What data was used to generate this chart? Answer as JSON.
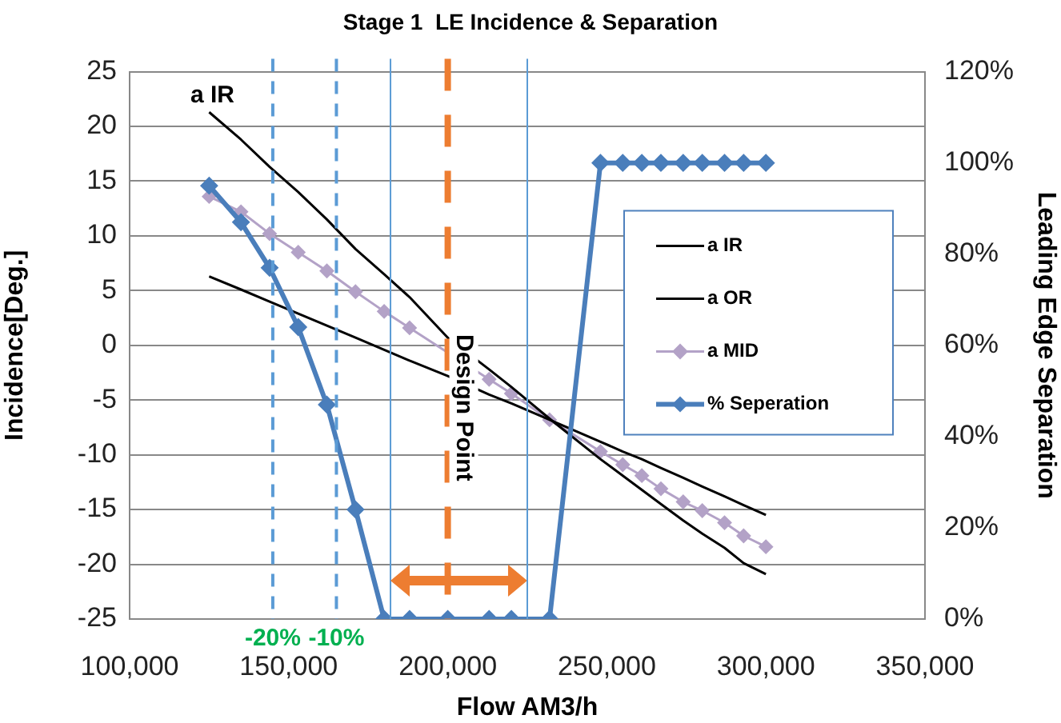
{
  "chart_data": {
    "type": "line",
    "title": "Stage 1  LE Incidence & Separation",
    "xlabel": "Flow AM3/h",
    "ylabel": "Incidence[Deg.]",
    "y2label": "Leading Edge Separation",
    "x": [
      125000,
      135000,
      144000,
      153000,
      162000,
      171000,
      180000,
      188000,
      200000,
      213000,
      220000,
      232000,
      248000,
      255000,
      261000,
      267000,
      274000,
      280000,
      287000,
      293000,
      300000
    ],
    "series": [
      {
        "name": "a IR",
        "color": "#000000",
        "marker": "none",
        "values": [
          21.3,
          18.8,
          16.3,
          14.0,
          11.5,
          8.8,
          6.5,
          4.4,
          0.7,
          -2.2,
          -3.8,
          -6.7,
          -10.4,
          -11.9,
          -13.2,
          -14.5,
          -16.0,
          -17.2,
          -18.5,
          -19.9,
          -20.9
        ]
      },
      {
        "name": "a OR",
        "color": "#000000",
        "marker": "none",
        "values": [
          6.3,
          5.1,
          4.0,
          2.9,
          1.8,
          0.7,
          -0.4,
          -1.4,
          -2.8,
          -4.5,
          -5.3,
          -6.8,
          -8.8,
          -9.7,
          -10.4,
          -11.2,
          -12.1,
          -12.9,
          -13.8,
          -14.6,
          -15.5
        ]
      },
      {
        "name": "a MID",
        "color": "#b3a2c7",
        "marker": "diamond",
        "values": [
          13.6,
          12.2,
          10.2,
          8.5,
          6.8,
          4.9,
          3.1,
          1.6,
          null,
          -3.1,
          -4.4,
          -6.8,
          -9.7,
          -10.9,
          -11.9,
          -13.1,
          -14.3,
          -15.1,
          -16.2,
          -17.4,
          -18.4
        ]
      },
      {
        "name": "% Seperation",
        "color": "#4a7ebb",
        "marker": "diamond",
        "axis": "y2",
        "values": [
          95,
          87,
          77,
          64,
          47,
          24,
          0,
          0,
          0,
          0,
          0,
          0,
          100,
          100,
          100,
          100,
          100,
          100,
          100,
          100,
          100
        ]
      }
    ],
    "xlim": [
      100000,
      350000
    ],
    "xticks": [
      {
        "value": 100000,
        "label": "100,000"
      },
      {
        "value": 150000,
        "label": "150,000"
      },
      {
        "value": 200000,
        "label": "200,000"
      },
      {
        "value": 250000,
        "label": "250,000"
      },
      {
        "value": 300000,
        "label": "300,000"
      },
      {
        "value": 350000,
        "label": "350,000"
      }
    ],
    "ylim": [
      -25,
      25
    ],
    "yticks": [
      -25,
      -20,
      -15,
      -10,
      -5,
      0,
      5,
      10,
      15,
      20,
      25
    ],
    "y2lim": [
      0,
      120
    ],
    "y2ticks": [
      {
        "value": 0,
        "label": "0%"
      },
      {
        "value": 20,
        "label": "20%"
      },
      {
        "value": 40,
        "label": "40%"
      },
      {
        "value": 60,
        "label": "60%"
      },
      {
        "value": 80,
        "label": "80%"
      },
      {
        "value": 100,
        "label": "100%"
      },
      {
        "value": 120,
        "label": "120%"
      }
    ],
    "ref_lines": [
      {
        "axis": "x",
        "value": 145000,
        "color": "#5b9bd5",
        "line_style": "dashed"
      },
      {
        "axis": "x",
        "value": 165000,
        "color": "#5b9bd5",
        "line_style": "dashed"
      },
      {
        "axis": "x",
        "value": 182000,
        "color": "#5b9bd5",
        "line_style": "solid"
      },
      {
        "axis": "x",
        "value": 225000,
        "color": "#5b9bd5",
        "line_style": "solid"
      },
      {
        "axis": "x",
        "value": 200000,
        "label": "Design Point",
        "color": "#ed7d31",
        "line_style": "dashed"
      }
    ],
    "annotations": [
      "a IR",
      {
        "text": "-20%",
        "x": 145000,
        "y": -25
      },
      {
        "text": "-10%",
        "x": 165000,
        "y": -25
      }
    ],
    "grid": "y",
    "legend": "right"
  }
}
